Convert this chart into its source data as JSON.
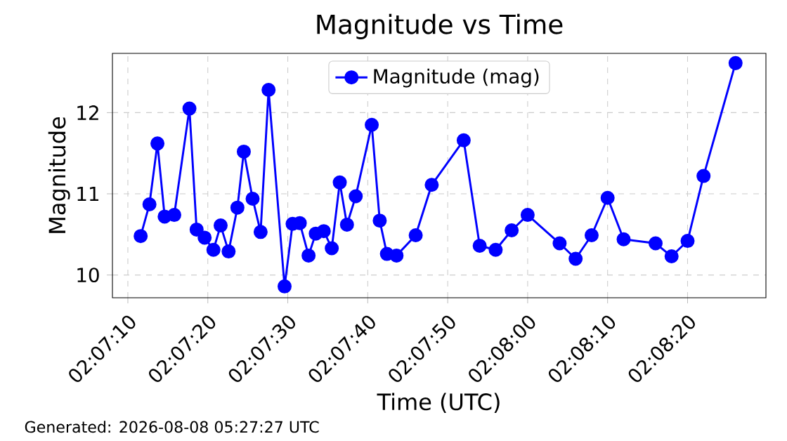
{
  "chart_data": {
    "type": "line",
    "title": "Magnitude vs Time",
    "xlabel": "Time (UTC)",
    "ylabel": "Magnitude",
    "x": [
      2.119889,
      2.120194,
      2.120472,
      2.120722,
      2.121056,
      2.121583,
      2.121833,
      2.122111,
      2.122417,
      2.122667,
      2.122944,
      2.12325,
      2.123472,
      2.123778,
      2.124056,
      2.124333,
      2.124889,
      2.125167,
      2.125417,
      2.125722,
      2.125972,
      2.12625,
      2.126528,
      2.126806,
      2.127056,
      2.127361,
      2.127917,
      2.128194,
      2.128444,
      2.128778,
      2.129444,
      2.13,
      2.131111,
      2.131667,
      2.132222,
      2.132778,
      2.133333,
      2.134444,
      2.135,
      2.135556,
      2.136111,
      2.136667,
      2.137778,
      2.138333,
      2.138889,
      2.139444,
      2.140556
    ],
    "series": [
      {
        "name": "Magnitude (mag)",
        "color": "#0000ff",
        "values": [
          10.48,
          10.87,
          11.62,
          10.72,
          10.74,
          12.05,
          10.56,
          10.46,
          10.31,
          10.61,
          10.29,
          10.83,
          11.52,
          10.94,
          10.53,
          12.28,
          9.86,
          10.63,
          10.64,
          10.24,
          10.51,
          10.54,
          10.33,
          11.14,
          10.62,
          10.97,
          11.85,
          10.67,
          10.26,
          10.24,
          10.49,
          11.11,
          11.66,
          10.36,
          10.31,
          10.55,
          10.74,
          10.39,
          10.2,
          10.49,
          10.95,
          10.44,
          10.39,
          10.23,
          10.42,
          11.22,
          12.61
        ]
      }
    ],
    "xlim": [
      2.118908,
      2.141611
    ],
    "ylim": [
      9.72,
      12.73
    ],
    "xticks": [
      {
        "value": 2.119444,
        "label": "02:07:10"
      },
      {
        "value": 2.122222,
        "label": "02:07:20"
      },
      {
        "value": 2.125,
        "label": "02:07:30"
      },
      {
        "value": 2.127778,
        "label": "02:07:40"
      },
      {
        "value": 2.130556,
        "label": "02:07:50"
      },
      {
        "value": 2.133333,
        "label": "02:08:00"
      },
      {
        "value": 2.136111,
        "label": "02:08:10"
      },
      {
        "value": 2.138889,
        "label": "02:08:20"
      }
    ],
    "yticks": [
      10,
      11,
      12
    ],
    "grid": true,
    "legend": "top",
    "marker": "circle",
    "line_style": "solid",
    "annotations": [
      "Generated: 2026-08-08 05:27:27 UTC"
    ]
  }
}
